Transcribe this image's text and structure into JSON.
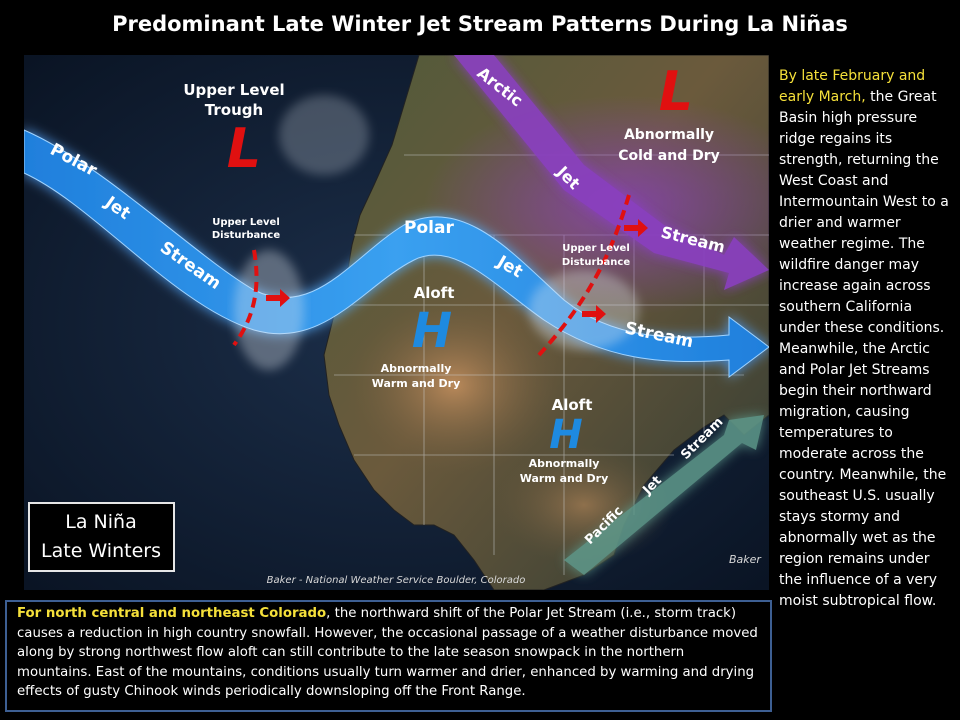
{
  "title": "Predominant Late Winter Jet Stream Patterns During La Niñas",
  "map": {
    "upper_trough_label_1": "Upper Level",
    "upper_trough_label_2": "Trough",
    "low_symbol": "L",
    "high_symbol": "H",
    "upper_disturbance_1": "Upper Level",
    "upper_disturbance_2": "Disturbance",
    "polar_jet": [
      "Polar",
      "Jet",
      "Stream"
    ],
    "polar_jet_east": [
      "Polar",
      "Jet",
      "Stream"
    ],
    "arctic_jet": [
      "Arctic",
      "Jet",
      "Stream"
    ],
    "pacific_jet": [
      "Pacific",
      "Jet",
      "Stream"
    ],
    "abnormally_cold_1": "Abnormally",
    "abnormally_cold_2": "Cold and Dry",
    "aloft": "Aloft",
    "abnormally_warm_1": "Abnormally",
    "abnormally_warm_2": "Warm and Dry",
    "legend_box_1": "La Niña",
    "legend_box_2": "Late Winters",
    "credit": "Baker - National Weather Service Boulder, Colorado",
    "signature": "Baker"
  },
  "side_text": {
    "highlight": "By late February and early March,",
    "body": " the Great Basin high pressure ridge regains its strength, returning the West Coast and Intermountain West to a drier and warmer weather regime. The wildfire danger may increase again across southern California under these conditions. Meanwhile, the Arctic and Polar Jet Streams begin their northward migration, causing temperatures to moderate across the country.  Meanwhile, the southeast U.S. usually stays stormy and abnormally wet as the region remains under the influence of a very moist subtropical flow."
  },
  "bottom_text": {
    "highlight": "For north central and northeast Colorado",
    "body": ", the northward shift of the Polar Jet Stream (i.e., storm track) causes a reduction in high country snowfall. However, the occasional passage of a weather disturbance moved along by strong northwest flow aloft can still contribute to the late season snowpack in the northern mountains. East of the mountains, conditions usually turn warmer and drier, enhanced by warming and drying effects of gusty Chinook winds periodically downsloping off the Front Range."
  },
  "colors": {
    "polar_jet": "#2a8fe8",
    "arctic_jet": "#8a3fc0",
    "pacific_jet": "#5f9a8c",
    "low": "#e01010",
    "high": "#1e8ae0",
    "highlight_text": "#f5e03a",
    "box_border": "#3d5f93"
  }
}
